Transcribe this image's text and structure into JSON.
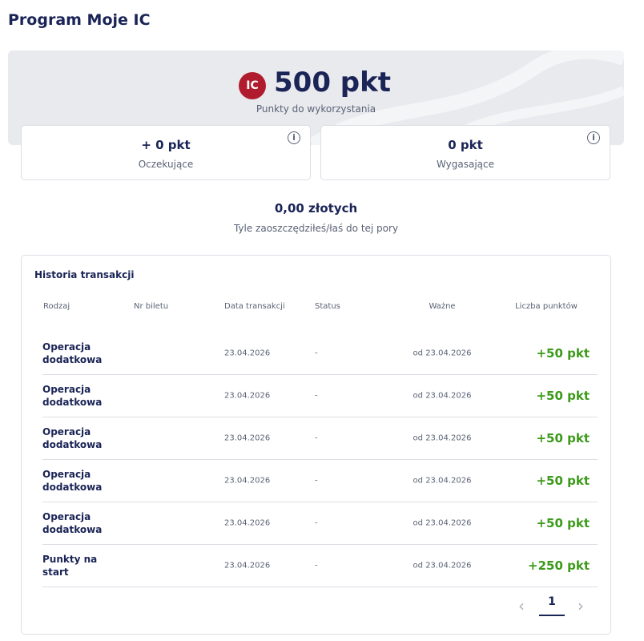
{
  "header": {
    "title": "Program Moje IC"
  },
  "balance": {
    "logo": "IC",
    "points": "500 pkt",
    "label": "Punkty do wykorzystania"
  },
  "cards": [
    {
      "value": "+ 0 pkt",
      "label": "Oczekujące"
    },
    {
      "value": "0 pkt",
      "label": "Wygasające"
    }
  ],
  "savings": {
    "value": "0,00 złotych",
    "label": "Tyle zaoszczędziłeś/łaś do tej pory"
  },
  "table": {
    "title": "Historia transakcji",
    "headers": [
      "Rodzaj",
      "Nr biletu",
      "Data transakcji",
      "Status",
      "Ważne",
      "Liczba punktów"
    ],
    "rows": [
      {
        "type": "Operacja dodatkowa",
        "date": "23.04.2026",
        "status": "-",
        "valid": "od 23.04.2026",
        "points": "+50 pkt"
      },
      {
        "type": "Operacja dodatkowa",
        "date": "23.04.2026",
        "status": "-",
        "valid": "od 23.04.2026",
        "points": "+50 pkt"
      },
      {
        "type": "Operacja dodatkowa",
        "date": "23.04.2026",
        "status": "-",
        "valid": "od 23.04.2026",
        "points": "+50 pkt"
      },
      {
        "type": "Operacja dodatkowa",
        "date": "23.04.2026",
        "status": "-",
        "valid": "od 23.04.2026",
        "points": "+50 pkt"
      },
      {
        "type": "Operacja dodatkowa",
        "date": "23.04.2026",
        "status": "-",
        "valid": "od 23.04.2026",
        "points": "+50 pkt"
      },
      {
        "type": "Punkty na start",
        "date": "23.04.2026",
        "status": "-",
        "valid": "od 23.04.2026",
        "points": "+250 pkt"
      }
    ]
  },
  "pagination": {
    "current": "1"
  }
}
